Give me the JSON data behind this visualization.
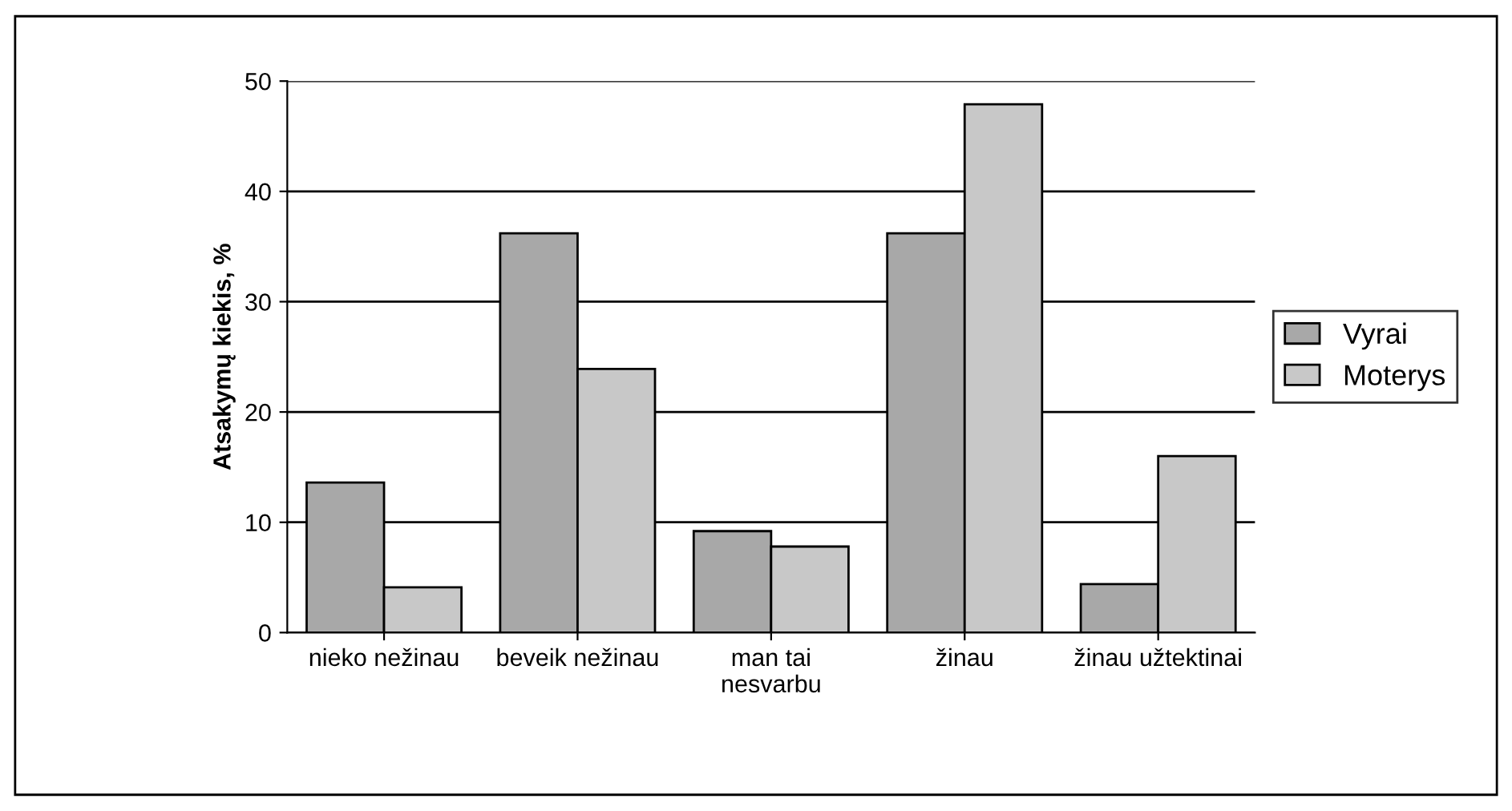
{
  "chart_data": {
    "type": "bar",
    "ylabel": "Atsakymų kiekis, %",
    "categories": [
      "nieko nežinau",
      "beveik nežinau",
      "man tai\nnesvarbu",
      "žinau",
      "žinau užtektinai"
    ],
    "series": [
      {
        "name": "Vyrai",
        "color": "#a8a8a8",
        "values": [
          13.6,
          36.2,
          9.2,
          36.2,
          4.4
        ]
      },
      {
        "name": "Moterys",
        "color": "#c8c8c8",
        "values": [
          4.1,
          23.9,
          7.8,
          47.9,
          16.0
        ]
      }
    ],
    "ylim": [
      0,
      50
    ],
    "yticks": [
      0,
      10,
      20,
      30,
      40,
      50
    ],
    "grid": "y",
    "legend": "right"
  }
}
